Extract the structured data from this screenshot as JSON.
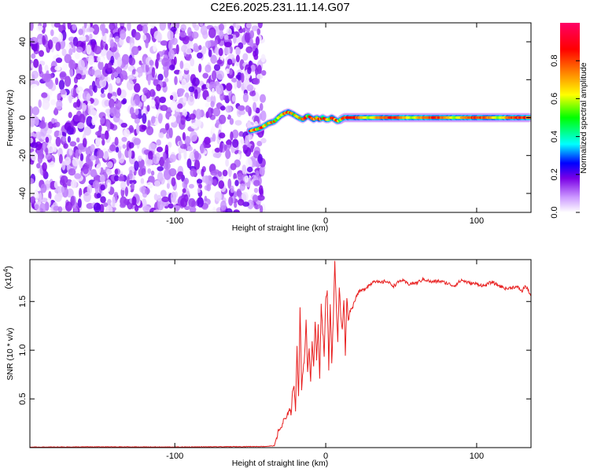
{
  "chart_data": [
    {
      "type": "heatmap",
      "title": "C2E6.2025.231.11.14.G07",
      "xlabel": "Height of straight line (km)",
      "ylabel": "Frequency (Hz)",
      "xlim": [
        -196,
        136
      ],
      "ylim": [
        -50,
        50
      ],
      "xticks": [
        -100,
        0,
        100
      ],
      "yticks": [
        -40,
        -20,
        0,
        20,
        40
      ],
      "colorbar": {
        "label": "Normalized spectral amplitude",
        "range": [
          0,
          1
        ],
        "ticks": [
          "0.0",
          "0.2",
          "0.4",
          "0.6",
          "0.8"
        ],
        "colors": [
          "#ffffff",
          "#cc99ff",
          "#7a00e6",
          "#0000ff",
          "#00ffff",
          "#00ff00",
          "#ffff00",
          "#ff8000",
          "#ff0000",
          "#ff0066"
        ]
      },
      "regions": [
        {
          "description": "noise",
          "x_from": -196,
          "x_to": -41,
          "amplitude_range": [
            0.0,
            0.2
          ]
        },
        {
          "description": "signal",
          "x_from": -50,
          "x_to": 136,
          "frequency_hz": 0,
          "amplitude_range": [
            0.2,
            1.0
          ]
        }
      ],
      "signal_track": {
        "x": [
          -50,
          -45,
          -42,
          -38,
          -34,
          -30,
          -28,
          -25,
          -22,
          -20,
          -18,
          -15,
          -12,
          -10,
          -8,
          -6,
          -4,
          -2,
          0,
          2,
          4,
          6,
          8,
          10,
          12,
          14,
          16,
          20,
          30,
          40,
          60,
          80,
          100,
          120,
          136
        ],
        "freq": [
          -7,
          -6,
          -5,
          -3,
          -2,
          1,
          2,
          3,
          2,
          1,
          0,
          -1,
          1,
          0,
          -1,
          0,
          -1,
          0,
          -1,
          -1,
          0,
          -1,
          -2,
          -1,
          0,
          0,
          0,
          0,
          0,
          0,
          0,
          0,
          0,
          0,
          0
        ]
      }
    },
    {
      "type": "line",
      "xlabel": "Height of straight line (km)",
      "ylabel": "SNR (10 * v/v)",
      "scale_note": "(x10",
      "scale_exp": "4",
      "xlim": [
        -196,
        136
      ],
      "ylim": [
        0,
        1.93
      ],
      "xticks": [
        -100,
        0,
        100
      ],
      "yticks": [
        "0.5",
        "1.0",
        "1.5"
      ],
      "color": "#e82020",
      "series": [
        {
          "x": [
            -196,
            -150,
            -100,
            -60,
            -40,
            -34,
            -32,
            -30,
            -29,
            -28,
            -27,
            -26,
            -25,
            -24,
            -23,
            -22,
            -21,
            -20,
            -19,
            -18,
            -17,
            -16,
            -15,
            -14,
            -13,
            -12,
            -11,
            -10,
            -9,
            -8,
            -7,
            -6,
            -5,
            -4,
            -3,
            -2,
            -1,
            0,
            1,
            2,
            3,
            4,
            5,
            6,
            7,
            8,
            9,
            10,
            11,
            12,
            13,
            14,
            15,
            16,
            18,
            20,
            22,
            25,
            28,
            30,
            32,
            34,
            36,
            40,
            45,
            50,
            55,
            60,
            65,
            70,
            75,
            80,
            85,
            90,
            95,
            100,
            105,
            110,
            115,
            120,
            125,
            128,
            130,
            132,
            134,
            136
          ],
          "y": [
            0.005,
            0.008,
            0.006,
            0.01,
            0.012,
            0.02,
            0.14,
            0.2,
            0.22,
            0.27,
            0.3,
            0.28,
            0.36,
            0.42,
            0.34,
            0.55,
            0.65,
            0.4,
            1.05,
            0.5,
            1.45,
            0.6,
            0.8,
            0.95,
            1.3,
            0.75,
            1.02,
            0.7,
            1.1,
            0.85,
            1.3,
            0.9,
            1.25,
            0.7,
            1.48,
            1.2,
            0.95,
            1.52,
            1.6,
            0.82,
            1.48,
            0.88,
            1.3,
            1.93,
            1.45,
            1.1,
            1.65,
            1.35,
            1.2,
            1.52,
            0.96,
            1.55,
            1.3,
            1.4,
            1.45,
            1.55,
            1.6,
            1.62,
            1.66,
            1.68,
            1.72,
            1.7,
            1.69,
            1.71,
            1.66,
            1.72,
            1.68,
            1.69,
            1.73,
            1.7,
            1.71,
            1.69,
            1.66,
            1.72,
            1.69,
            1.68,
            1.66,
            1.7,
            1.66,
            1.63,
            1.65,
            1.64,
            1.6,
            1.66,
            1.62,
            1.56
          ]
        }
      ]
    }
  ]
}
